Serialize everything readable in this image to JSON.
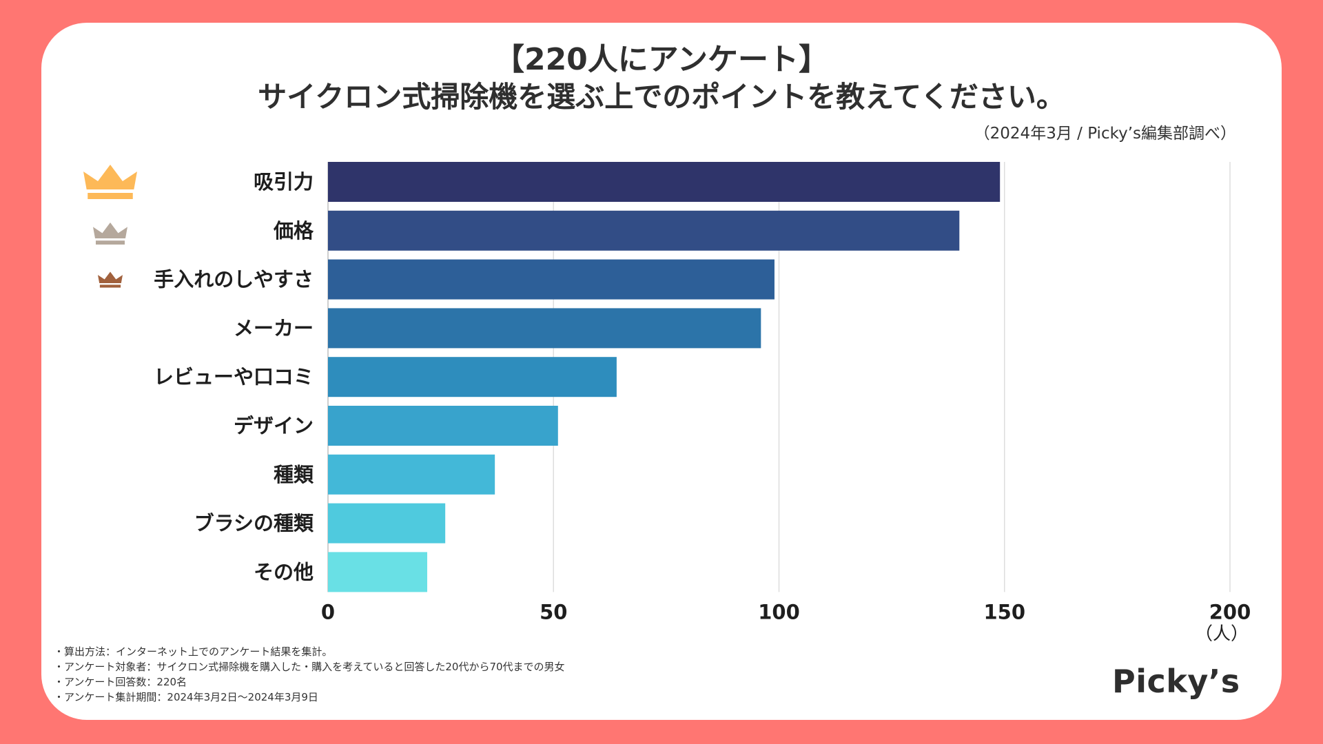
{
  "header": {
    "title_line1": "【220人にアンケート】",
    "title_line2": "サイクロン式掃除機を選ぶ上でのポイントを教えてください。",
    "source": "（2024年3月 / Picky’s編集部調べ）"
  },
  "chart_data": {
    "type": "bar",
    "orientation": "horizontal",
    "categories": [
      "吸引力",
      "価格",
      "手入れのしやすさ",
      "メーカー",
      "レビューや口コミ",
      "デザイン",
      "種類",
      "ブラシの種類",
      "その他"
    ],
    "values": [
      149,
      140,
      99,
      96,
      64,
      51,
      37,
      26,
      22
    ],
    "xlim": [
      0,
      200
    ],
    "xticks": [
      0,
      50,
      100,
      150,
      200
    ],
    "xlabel": "（人）",
    "grid": true,
    "bar_colors": [
      "#2f346a",
      "#324d86",
      "#2d5f98",
      "#2c74a9",
      "#2e8dbd",
      "#38a3cc",
      "#43b8d8",
      "#4fcade",
      "#69e0e5"
    ],
    "rank_icons": [
      {
        "name": "crown-gold-icon",
        "color": "#fdb958"
      },
      {
        "name": "crown-silver-icon",
        "color": "#b5a89c"
      },
      {
        "name": "crown-bronze-icon",
        "color": "#a1613d"
      }
    ]
  },
  "notes": [
    "・算出方法：インターネット上でのアンケート結果を集計。",
    "・アンケート対象者：サイクロン式掃除機を購入した・購入を考えていると回答した20代から70代までの男女",
    "・アンケート回答数：220名",
    "・アンケート集計期間：2024年3月2日〜2024年3月9日"
  ],
  "brand": {
    "logo_text": "Picky’s",
    "frame_color": "#ff7672"
  }
}
